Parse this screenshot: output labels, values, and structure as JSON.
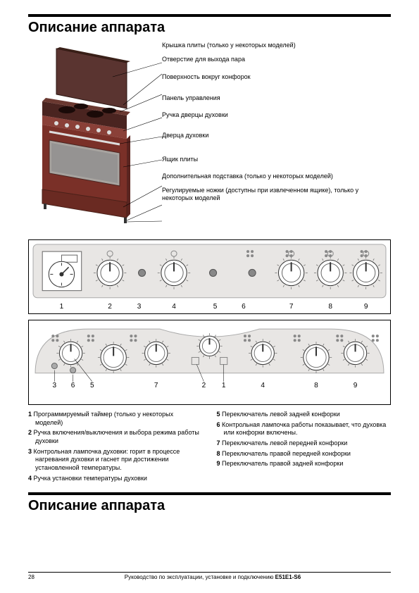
{
  "title": "Описание аппарата",
  "title2": "Описание аппарата",
  "callouts": {
    "c1": "Крышка плиты (только у некоторых моделей)",
    "c2": "Отверстие для выхода пара",
    "c3": "Поверхность вокруг конфорок",
    "c4": "Панель управления",
    "c5": "Ручка дверцы духовки",
    "c6": "Дверца духовки",
    "c7": "Ящик плиты",
    "c8": "Дополнительная подставка (только у некоторых моделей)",
    "c9": "Регулируемые ножки (доступны при извлеченном ящике), только у некоторых моделей"
  },
  "panel1_labels": [
    "1",
    "2",
    "3",
    "4",
    "5",
    "6",
    "7",
    "8",
    "9"
  ],
  "panel2_labels": [
    "3",
    "6",
    "5",
    "7",
    "2",
    "1",
    "4",
    "8",
    "9"
  ],
  "legend_left": [
    {
      "n": "1",
      "t": "Программируемый таймер (только у некоторых моделей)"
    },
    {
      "n": "2",
      "t": "Ручка включения/выключения и выбора режима работы духовки"
    },
    {
      "n": "3",
      "t": "Контрольная лампочка духовки: горит в процессе нагревания духовки и гаснет при достижении установленной температуры."
    },
    {
      "n": "4",
      "t": "Ручка установки температуры духовки"
    }
  ],
  "legend_right": [
    {
      "n": "5",
      "t": "Переключатель левой задней конфорки"
    },
    {
      "n": "6",
      "t": "Контрольная лампочка работы показывает, что духовка или конфорки включены."
    },
    {
      "n": "7",
      "t": "Переключатель левой передней конфорки"
    },
    {
      "n": "8",
      "t": "Переключатель правой передней конфорки"
    },
    {
      "n": "9",
      "t": "Переключатель правой задней конфорки"
    }
  ],
  "footer": {
    "page": "28",
    "text": "Руководство по эксплуатации, установке и подключению",
    "model": "E51E1-S6"
  },
  "colors": {
    "stove_body": "#7a3028",
    "stove_body_light": "#9a4840",
    "stove_top": "#4a2420",
    "stove_lid": "#5a3430",
    "oven_window": "#a8a4a0",
    "panel_bg": "#e8e6e4",
    "panel_stroke": "#888",
    "knob_fill": "#fff",
    "knob_stroke": "#000"
  }
}
